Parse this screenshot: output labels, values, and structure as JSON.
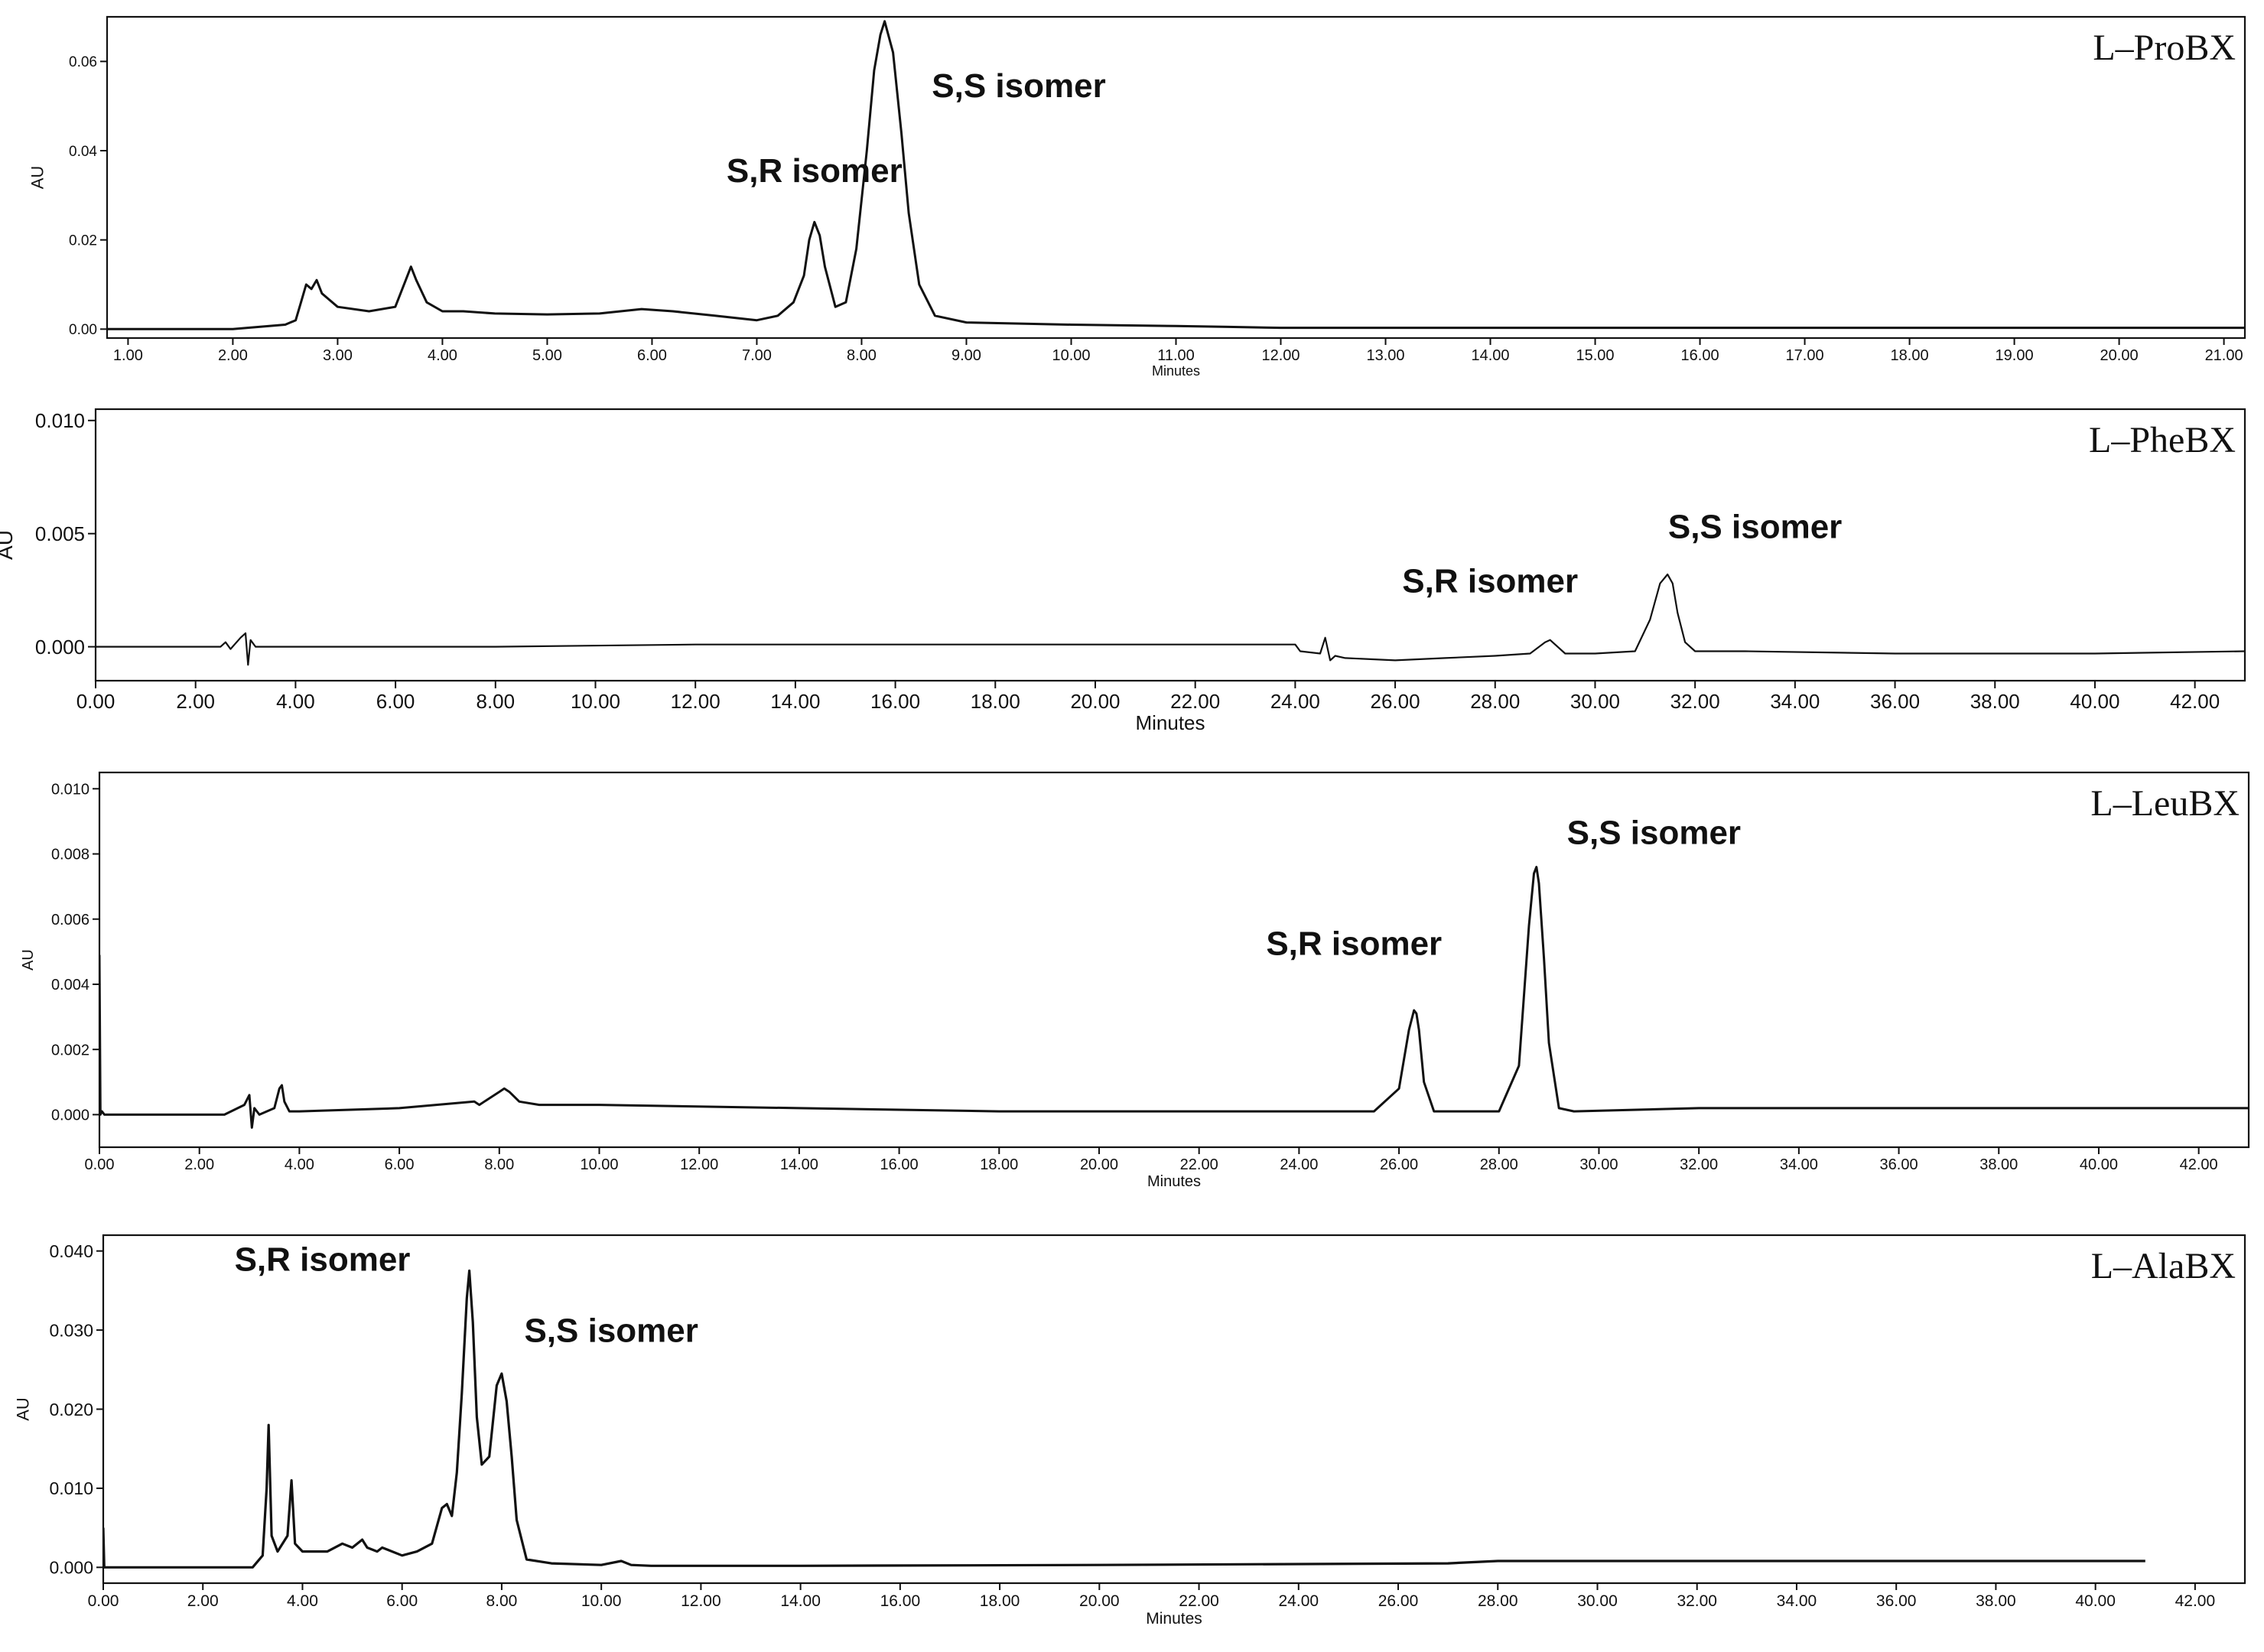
{
  "chart_data": [
    {
      "type": "line",
      "compound_label": "L–ProBX",
      "xlabel": "Minutes",
      "ylabel": "AU",
      "xlim": [
        0.8,
        21.2
      ],
      "ylim": [
        -0.002,
        0.07
      ],
      "xticks": [
        1,
        2,
        3,
        4,
        5,
        6,
        7,
        8,
        9,
        10,
        11,
        12,
        13,
        14,
        15,
        16,
        17,
        18,
        19,
        20,
        21
      ],
      "xtick_labels": [
        "1.00",
        "2.00",
        "3.00",
        "4.00",
        "5.00",
        "6.00",
        "7.00",
        "8.00",
        "9.00",
        "10.00",
        "11.00",
        "12.00",
        "13.00",
        "14.00",
        "15.00",
        "16.00",
        "17.00",
        "18.00",
        "19.00",
        "20.00",
        "21.00"
      ],
      "yticks": [
        0,
        0.02,
        0.04,
        0.06
      ],
      "ytick_labels": [
        "0.00",
        "0.02",
        "0.04",
        "0.06"
      ],
      "annotations": [
        {
          "text": "S,R isomer",
          "x": 7.55,
          "y": 0.033
        },
        {
          "text": "S,S isomer",
          "x": 9.5,
          "y": 0.052
        }
      ],
      "series": [
        {
          "x": [
            0.8,
            2.0,
            2.5,
            2.6,
            2.65,
            2.7,
            2.75,
            2.8,
            2.85,
            2.9,
            3.0,
            3.3,
            3.55,
            3.65,
            3.7,
            3.75,
            3.85,
            4.0,
            4.2,
            4.5,
            5.0,
            5.5,
            5.9,
            6.2,
            6.6,
            7.0,
            7.2,
            7.35,
            7.45,
            7.5,
            7.55,
            7.6,
            7.65,
            7.75,
            7.85,
            7.95,
            8.05,
            8.12,
            8.18,
            8.22,
            8.3,
            8.38,
            8.45,
            8.55,
            8.7,
            9.0,
            10.0,
            11.0,
            11.5,
            12.0,
            14.0,
            16.0,
            18.0,
            20.0,
            21.2
          ],
          "y": [
            0.0,
            0.0,
            0.001,
            0.002,
            0.006,
            0.01,
            0.009,
            0.011,
            0.008,
            0.007,
            0.005,
            0.004,
            0.005,
            0.011,
            0.014,
            0.011,
            0.006,
            0.004,
            0.004,
            0.0035,
            0.0033,
            0.0035,
            0.0045,
            0.004,
            0.003,
            0.002,
            0.003,
            0.006,
            0.012,
            0.02,
            0.024,
            0.021,
            0.014,
            0.005,
            0.006,
            0.018,
            0.04,
            0.058,
            0.066,
            0.069,
            0.062,
            0.044,
            0.026,
            0.01,
            0.003,
            0.0015,
            0.001,
            0.0007,
            0.0005,
            0.0003,
            0.0003,
            0.0003,
            0.0003,
            0.0003,
            0.0003
          ]
        }
      ]
    },
    {
      "type": "line",
      "compound_label": "L–PheBX",
      "xlabel": "Minutes",
      "ylabel": "AU",
      "xlim": [
        0,
        43
      ],
      "ylim": [
        -0.0015,
        0.0105
      ],
      "xticks": [
        0,
        2,
        4,
        6,
        8,
        10,
        12,
        14,
        16,
        18,
        20,
        22,
        24,
        26,
        28,
        30,
        32,
        34,
        36,
        38,
        40,
        42
      ],
      "xtick_labels": [
        "0.00",
        "2.00",
        "4.00",
        "6.00",
        "8.00",
        "10.00",
        "12.00",
        "14.00",
        "16.00",
        "18.00",
        "20.00",
        "22.00",
        "24.00",
        "26.00",
        "28.00",
        "30.00",
        "32.00",
        "34.00",
        "36.00",
        "38.00",
        "40.00",
        "42.00"
      ],
      "yticks": [
        0,
        0.005,
        0.01
      ],
      "ytick_labels": [
        "0.000",
        "0.005",
        "0.010"
      ],
      "annotations": [
        {
          "text": "S,R isomer",
          "x": 27.9,
          "y": 0.0024
        },
        {
          "text": "S,S isomer",
          "x": 33.2,
          "y": 0.0048
        }
      ],
      "series": [
        {
          "x": [
            0,
            2.5,
            2.6,
            2.7,
            2.9,
            3.0,
            3.05,
            3.1,
            3.2,
            4.0,
            8.0,
            12.0,
            16.0,
            20.0,
            24.0,
            24.1,
            24.5,
            24.6,
            24.7,
            24.8,
            25.0,
            26.0,
            27.0,
            28.0,
            28.7,
            29.0,
            29.1,
            29.2,
            29.4,
            30.0,
            30.8,
            31.1,
            31.3,
            31.45,
            31.55,
            31.65,
            31.8,
            32.0,
            32.4,
            33.0,
            36.0,
            40.0,
            43.0
          ],
          "y": [
            0.0,
            0.0,
            0.0002,
            -0.0001,
            0.0004,
            0.0006,
            -0.0008,
            0.0003,
            0.0,
            0.0,
            0.0,
            0.0001,
            0.0001,
            0.0001,
            0.0001,
            -0.0002,
            -0.0003,
            0.0004,
            -0.0006,
            -0.0004,
            -0.0005,
            -0.0006,
            -0.0005,
            -0.0004,
            -0.0003,
            0.0002,
            0.0003,
            0.0001,
            -0.0003,
            -0.0003,
            -0.0002,
            0.0012,
            0.0028,
            0.0032,
            0.0028,
            0.0015,
            0.0002,
            -0.0002,
            -0.0002,
            -0.0002,
            -0.0003,
            -0.0003,
            -0.0002
          ]
        }
      ]
    },
    {
      "type": "line",
      "compound_label": "L–LeuBX",
      "xlabel": "Minutes",
      "ylabel": "AU",
      "xlim": [
        0,
        43
      ],
      "ylim": [
        -0.001,
        0.0105
      ],
      "xticks": [
        0,
        2,
        4,
        6,
        8,
        10,
        12,
        14,
        16,
        18,
        20,
        22,
        24,
        26,
        28,
        30,
        32,
        34,
        36,
        38,
        40,
        42
      ],
      "xtick_labels": [
        "0.00",
        "2.00",
        "4.00",
        "6.00",
        "8.00",
        "10.00",
        "12.00",
        "14.00",
        "16.00",
        "18.00",
        "20.00",
        "22.00",
        "24.00",
        "26.00",
        "28.00",
        "30.00",
        "32.00",
        "34.00",
        "36.00",
        "38.00",
        "40.00",
        "42.00"
      ],
      "yticks": [
        0,
        0.002,
        0.004,
        0.006,
        0.008,
        0.01
      ],
      "ytick_labels": [
        "0.000",
        "0.002",
        "0.004",
        "0.006",
        "0.008",
        "0.010"
      ],
      "annotations": [
        {
          "text": "S,R isomer",
          "x": 25.1,
          "y": 0.0049
        },
        {
          "text": "S,S isomer",
          "x": 31.1,
          "y": 0.0083
        }
      ],
      "series": [
        {
          "x": [
            0,
            0.02,
            0.05,
            0.1,
            2.5,
            2.9,
            3.0,
            3.05,
            3.1,
            3.2,
            3.5,
            3.6,
            3.65,
            3.7,
            3.8,
            4.0,
            6.0,
            7.5,
            7.6,
            7.8,
            8.0,
            8.1,
            8.2,
            8.4,
            8.8,
            10.0,
            14.0,
            18.0,
            22.0,
            25.5,
            26.0,
            26.2,
            26.3,
            26.35,
            26.4,
            26.5,
            26.7,
            27.0,
            28.0,
            28.4,
            28.6,
            28.7,
            28.75,
            28.8,
            28.9,
            29.0,
            29.2,
            29.5,
            32.0,
            36.0,
            40.0,
            43.0
          ],
          "y": [
            0.0049,
            0.0,
            0.0001,
            0.0,
            0.0,
            0.0003,
            0.0006,
            -0.0004,
            0.0002,
            0.0,
            0.0002,
            0.0008,
            0.0009,
            0.0004,
            0.0001,
            0.0001,
            0.0002,
            0.0004,
            0.0003,
            0.0005,
            0.0007,
            0.0008,
            0.0007,
            0.0004,
            0.0003,
            0.0003,
            0.0002,
            0.0001,
            0.0001,
            0.0001,
            0.0008,
            0.0026,
            0.0032,
            0.0031,
            0.0026,
            0.001,
            0.0001,
            0.0001,
            0.0001,
            0.0015,
            0.0058,
            0.0074,
            0.0076,
            0.0071,
            0.0048,
            0.0022,
            0.0002,
            0.0001,
            0.0002,
            0.0002,
            0.0002,
            0.0002
          ]
        }
      ]
    },
    {
      "type": "line",
      "compound_label": "L–AlaBX",
      "xlabel": "Minutes",
      "ylabel": "AU",
      "xlim": [
        0,
        43
      ],
      "ylim": [
        -0.002,
        0.042
      ],
      "xticks": [
        0,
        2,
        4,
        6,
        8,
        10,
        12,
        14,
        16,
        18,
        20,
        22,
        24,
        26,
        28,
        30,
        32,
        34,
        36,
        38,
        40,
        42
      ],
      "xtick_labels": [
        "0.00",
        "2.00",
        "4.00",
        "6.00",
        "8.00",
        "10.00",
        "12.00",
        "14.00",
        "16.00",
        "18.00",
        "20.00",
        "22.00",
        "24.00",
        "26.00",
        "28.00",
        "30.00",
        "32.00",
        "34.00",
        "36.00",
        "38.00",
        "40.00",
        "42.00"
      ],
      "yticks": [
        0,
        0.01,
        0.02,
        0.03,
        0.04
      ],
      "ytick_labels": [
        "0.000",
        "0.010",
        "0.020",
        "0.030",
        "0.040"
      ],
      "annotations": [
        {
          "text": "S,R isomer",
          "x": 4.4,
          "y": 0.0375
        },
        {
          "text": "S,S isomer",
          "x": 10.2,
          "y": 0.0285
        }
      ],
      "series": [
        {
          "x": [
            0,
            0.02,
            0.05,
            0.1,
            3.0,
            3.2,
            3.28,
            3.32,
            3.38,
            3.5,
            3.7,
            3.78,
            3.85,
            4.0,
            4.5,
            4.8,
            5.0,
            5.2,
            5.3,
            5.5,
            5.6,
            5.8,
            6.0,
            6.3,
            6.6,
            6.8,
            6.9,
            7.0,
            7.1,
            7.2,
            7.3,
            7.35,
            7.42,
            7.5,
            7.6,
            7.75,
            7.9,
            8.0,
            8.1,
            8.2,
            8.3,
            8.5,
            9.0,
            10.0,
            10.4,
            10.6,
            11.0,
            14.0,
            20.0,
            27.0,
            28.0,
            32.0,
            36.0,
            41.0
          ],
          "y": [
            0.005,
            0.0,
            0.0,
            0.0,
            0.0,
            0.0015,
            0.01,
            0.018,
            0.004,
            0.002,
            0.004,
            0.011,
            0.003,
            0.002,
            0.002,
            0.003,
            0.0025,
            0.0035,
            0.0025,
            0.002,
            0.0025,
            0.002,
            0.0015,
            0.002,
            0.003,
            0.0075,
            0.008,
            0.0065,
            0.012,
            0.022,
            0.034,
            0.0375,
            0.031,
            0.019,
            0.013,
            0.014,
            0.023,
            0.0245,
            0.021,
            0.014,
            0.006,
            0.001,
            0.0005,
            0.0003,
            0.0008,
            0.0003,
            0.0002,
            0.0002,
            0.0003,
            0.0005,
            0.0008,
            0.0008,
            0.0008,
            0.0008
          ]
        }
      ]
    }
  ]
}
